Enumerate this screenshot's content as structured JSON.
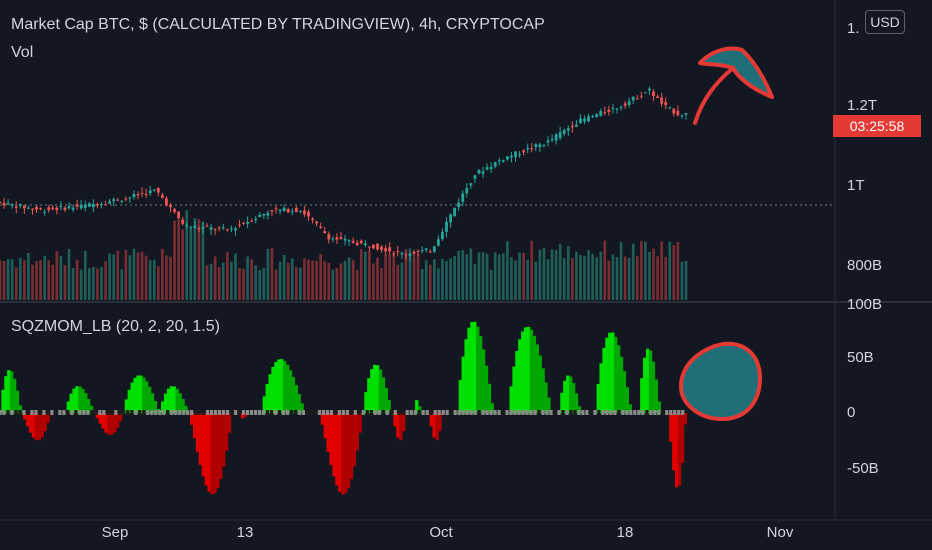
{
  "main_pane": {
    "title": "Market Cap BTC, $ (CALCULATED BY TRADINGVIEW), 4h, CRYPTOCAP",
    "volume_label": "Vol",
    "price_ticks": [
      {
        "label": "1.",
        "value": 1.4
      },
      {
        "label": "1.2T",
        "value": 1.2
      },
      {
        "label": "1T",
        "value": 1.0
      },
      {
        "label": "800B",
        "value": 0.8
      }
    ],
    "currency_button": "USD",
    "countdown": "03:25:58"
  },
  "indicator_pane": {
    "title": "SQZMOM_LB (20, 2, 20, 1.5)",
    "ticks": [
      {
        "label": "100B",
        "value": 100
      },
      {
        "label": "50B",
        "value": 50
      },
      {
        "label": "0",
        "value": 0
      },
      {
        "label": "-50B",
        "value": -50
      }
    ]
  },
  "time_axis": [
    "Sep",
    "13",
    "Oct",
    "18",
    "Nov"
  ],
  "colors": {
    "background": "#131722",
    "up": "#26a69a",
    "down": "#ef5350",
    "momentum_up": "#00e000",
    "momentum_down": "#e00000",
    "annotation_fill": "#1f6e78",
    "annotation_stroke": "#e53935",
    "countdown_bg": "#e53935"
  },
  "chart_data": {
    "type": "line",
    "note_series": "approximate market cap path (trillions USD) over time index 0-100",
    "price_path": [
      [
        0,
        0.97
      ],
      [
        6,
        0.95
      ],
      [
        12,
        0.96
      ],
      [
        18,
        0.98
      ],
      [
        22,
        1.0
      ],
      [
        26,
        0.91
      ],
      [
        32,
        0.9
      ],
      [
        38,
        0.95
      ],
      [
        42,
        0.95
      ],
      [
        46,
        0.88
      ],
      [
        52,
        0.86
      ],
      [
        56,
        0.84
      ],
      [
        60,
        0.85
      ],
      [
        63,
        0.95
      ],
      [
        66,
        1.04
      ],
      [
        70,
        1.08
      ],
      [
        76,
        1.12
      ],
      [
        80,
        1.17
      ],
      [
        86,
        1.21
      ],
      [
        90,
        1.25
      ],
      [
        92,
        1.21
      ],
      [
        94,
        1.19
      ]
    ],
    "momentum_lobes": [
      {
        "start": 0,
        "end": 3,
        "peak": 40
      },
      {
        "start": 3,
        "end": 7,
        "peak": -25
      },
      {
        "start": 9,
        "end": 13,
        "peak": 25
      },
      {
        "start": 13,
        "end": 17,
        "peak": -20
      },
      {
        "start": 17,
        "end": 22,
        "peak": 35
      },
      {
        "start": 22,
        "end": 26,
        "peak": 25
      },
      {
        "start": 26,
        "end": 32,
        "peak": -75
      },
      {
        "start": 33,
        "end": 34,
        "peak": -5
      },
      {
        "start": 36,
        "end": 42,
        "peak": 50
      },
      {
        "start": 44,
        "end": 50,
        "peak": -75
      },
      {
        "start": 50,
        "end": 54,
        "peak": 45
      },
      {
        "start": 54,
        "end": 56,
        "peak": -25
      },
      {
        "start": 57,
        "end": 58,
        "peak": 12
      },
      {
        "start": 59,
        "end": 61,
        "peak": -25
      },
      {
        "start": 63,
        "end": 68,
        "peak": 85
      },
      {
        "start": 70,
        "end": 76,
        "peak": 80
      },
      {
        "start": 77,
        "end": 80,
        "peak": 35
      },
      {
        "start": 82,
        "end": 87,
        "peak": 75
      },
      {
        "start": 88,
        "end": 91,
        "peak": 60
      },
      {
        "start": 92,
        "end": 94.5,
        "peak": -70
      }
    ]
  }
}
